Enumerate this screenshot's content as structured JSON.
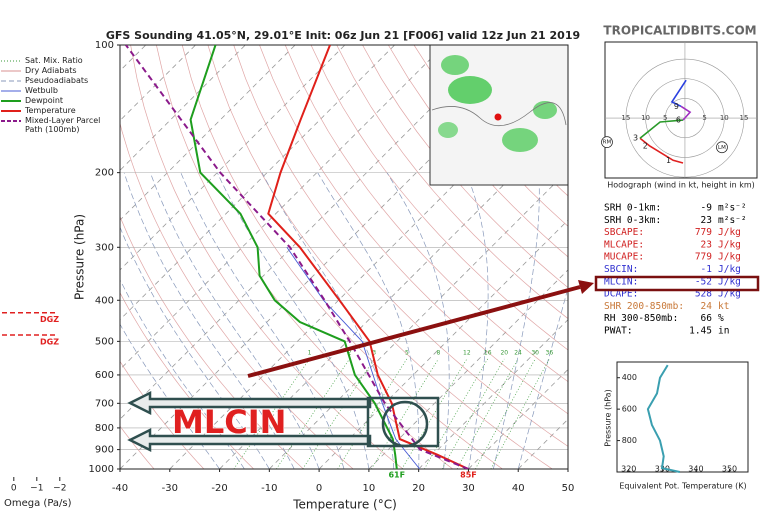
{
  "site": "TROPICALTIDBITS.COM",
  "chart_data": [
    {
      "type": "skewt",
      "title": "GFS Sounding 41.05°N, 29.01°E Init: 06z Jun 21 [F006] valid 12z Jun 21 2019",
      "x_label": "Temperature (°C)",
      "y_label": "Pressure (hPa)",
      "xlim": [
        -40,
        50
      ],
      "xticks": [
        -40,
        -30,
        -20,
        -10,
        0,
        10,
        20,
        30,
        40,
        50
      ],
      "ylim": [
        1000,
        100
      ],
      "yticks": [
        100,
        200,
        300,
        400,
        500,
        600,
        700,
        800,
        900,
        1000
      ],
      "log_y": true,
      "background_lines": [
        {
          "name": "Sat. Mix. Ratio",
          "color": "#3a9a3a"
        },
        {
          "name": "Dry Adiabats",
          "color": "#d89090"
        },
        {
          "name": "Pseudoadiabats",
          "color": "#8899bb"
        }
      ],
      "mixing_ratio_lines": [
        1,
        2,
        3,
        5,
        8,
        12,
        16,
        20,
        24,
        30,
        36
      ],
      "series": [
        {
          "name": "Wetbulb",
          "color": "#4a5cd6",
          "pressure": [
            1000,
            850,
            700,
            500,
            400,
            300
          ],
          "values": [
            20.2,
            9.4,
            -0.5,
            -17,
            -33,
            -51
          ]
        },
        {
          "name": "Dewpoint",
          "color": "#1e9e1e",
          "surface_label": "61F",
          "pressure": [
            1000,
            925,
            850,
            700,
            600,
            500,
            450,
            400,
            350,
            300,
            250,
            200,
            150,
            100
          ],
          "values": [
            15.6,
            12.4,
            8.8,
            -2,
            -11.7,
            -20.5,
            -33.4,
            -42.8,
            -50.8,
            -56.9,
            -67.1,
            -83.4,
            -96,
            -106
          ]
        },
        {
          "name": "Temperature",
          "color": "#e0201a",
          "surface_label": "85F",
          "pressure": [
            1000,
            925,
            850,
            700,
            600,
            500,
            400,
            300,
            250,
            200,
            150,
            100
          ],
          "values": [
            30,
            20.8,
            10.2,
            1.4,
            -7.1,
            -15.5,
            -29.8,
            -48.4,
            -61.5,
            -67.3,
            -73.9,
            -83
          ]
        },
        {
          "name": "Mixed-Layer Parcel Path (100mb)",
          "color": "#8b1a8b",
          "dashed": true,
          "pressure": [
            1000,
            900,
            700,
            500,
            400,
            300,
            200,
            100
          ],
          "values": [
            30,
            16.4,
            0,
            -19.5,
            -32.8,
            -50.4,
            -79.4,
            -124
          ]
        }
      ]
    },
    {
      "type": "hodograph",
      "caption": "Hodograph (wind in kt, height in km)",
      "xlim": [
        -20.3,
        18.3
      ],
      "ylim": [
        -15.2,
        19.3
      ],
      "xticks": [
        {
          "value": -15,
          "label": "15"
        },
        {
          "value": -10,
          "label": "10"
        },
        {
          "value": -5,
          "label": "5"
        },
        5,
        10,
        15
      ],
      "series": [
        {
          "color": "#e02020",
          "u": [
            -0.5,
            -3,
            -8.9,
            -11.4
          ],
          "v": [
            -11.4,
            -10.7,
            -7.1,
            -5.1
          ]
        },
        {
          "color": "#2a9a2a",
          "u": [
            -11.4,
            -6.3,
            -0.5
          ],
          "v": [
            -5.1,
            -1,
            -0.5
          ]
        },
        {
          "color": "#a030c0",
          "u": [
            -0.5,
            1.3,
            -1
          ],
          "v": [
            -0.5,
            1.5,
            3
          ]
        },
        {
          "color": "#2a40e0",
          "u": [
            -1,
            -3.3,
            0.3
          ],
          "v": [
            3,
            4.1,
            9.6
          ]
        }
      ],
      "height_labels": [
        {
          "label": "1",
          "u": -3,
          "v": -10.7
        },
        {
          "label": "2",
          "u": -8.9,
          "v": -7.1
        },
        {
          "label": "3",
          "u": -11.4,
          "v": -5.1
        },
        {
          "label": "6",
          "u": -0.5,
          "v": -0.5
        },
        {
          "label": "9",
          "u": -1,
          "v": 3
        }
      ],
      "storm_motion": [
        {
          "label": "RM",
          "u": -19.8,
          "v": -6.1
        },
        {
          "label": "LM",
          "u": 9.4,
          "v": -7.4
        }
      ]
    },
    {
      "type": "line",
      "x_label": "Equivalent Pot. Temperature (K)",
      "y_label": "Pressure (hPa)",
      "xlim": [
        316.5,
        355.5
      ],
      "xticks": [
        320,
        330,
        340,
        350
      ],
      "ylim": [
        1000,
        300
      ],
      "yticks": [
        400,
        600,
        800
      ],
      "series": [
        {
          "color": "#3a9fb0",
          "pressure": [
            1000,
            975,
            900,
            800,
            700,
            600,
            500,
            400,
            320
          ],
          "values": [
            335.2,
            329.9,
            330.4,
            329.3,
            326.9,
            325.7,
            328.4,
            329.3,
            331.6
          ]
        }
      ]
    },
    {
      "type": "omega",
      "x_label": "Omega (Pa/s)",
      "xlim": [
        0.6,
        -2.4
      ],
      "xticks": [
        0,
        {
          "value": -1,
          "label": "−1"
        },
        {
          "value": -2,
          "label": "−2"
        }
      ],
      "ylim": [
        1000,
        100
      ],
      "dgz": [
        {
          "label": "DGZ",
          "pressure": 428
        },
        {
          "label": "DGZ",
          "pressure": 483
        }
      ]
    }
  ],
  "indices": {
    "boxed_row": 6,
    "rows": [
      {
        "label": "SRH 0-1km:",
        "value": "-9",
        "unit": "m²s⁻²",
        "color": "#000000"
      },
      {
        "label": "SRH 0-3km:",
        "value": "23",
        "unit": "m²s⁻²",
        "color": "#000000"
      },
      {
        "label": "SBCAPE:",
        "value": "779",
        "unit": "J/kg",
        "color": "#d02020"
      },
      {
        "label": "MLCAPE:",
        "value": "23",
        "unit": "J/kg",
        "color": "#d02020"
      },
      {
        "label": "MUCAPE:",
        "value": "779",
        "unit": "J/kg",
        "color": "#d02020"
      },
      {
        "label": "SBCIN:",
        "value": "-1",
        "unit": "J/kg",
        "color": "#3030d0"
      },
      {
        "label": "MLCIN:",
        "value": "-52",
        "unit": "J/kg",
        "color": "#3030d0"
      },
      {
        "label": "DCAPE:",
        "value": "528",
        "unit": "J/kg",
        "color": "#3030d0"
      },
      {
        "label": "SHR 200-850mb:",
        "value": "24",
        "unit": "kt",
        "color": "#c87838"
      },
      {
        "label": "RH 300-850mb:",
        "value": "66",
        "unit": "%",
        "color": "#000000"
      },
      {
        "label": "PWAT:",
        "value": "1.45",
        "unit": "in",
        "color": "#000000"
      }
    ]
  },
  "annotation": "MLCIN"
}
